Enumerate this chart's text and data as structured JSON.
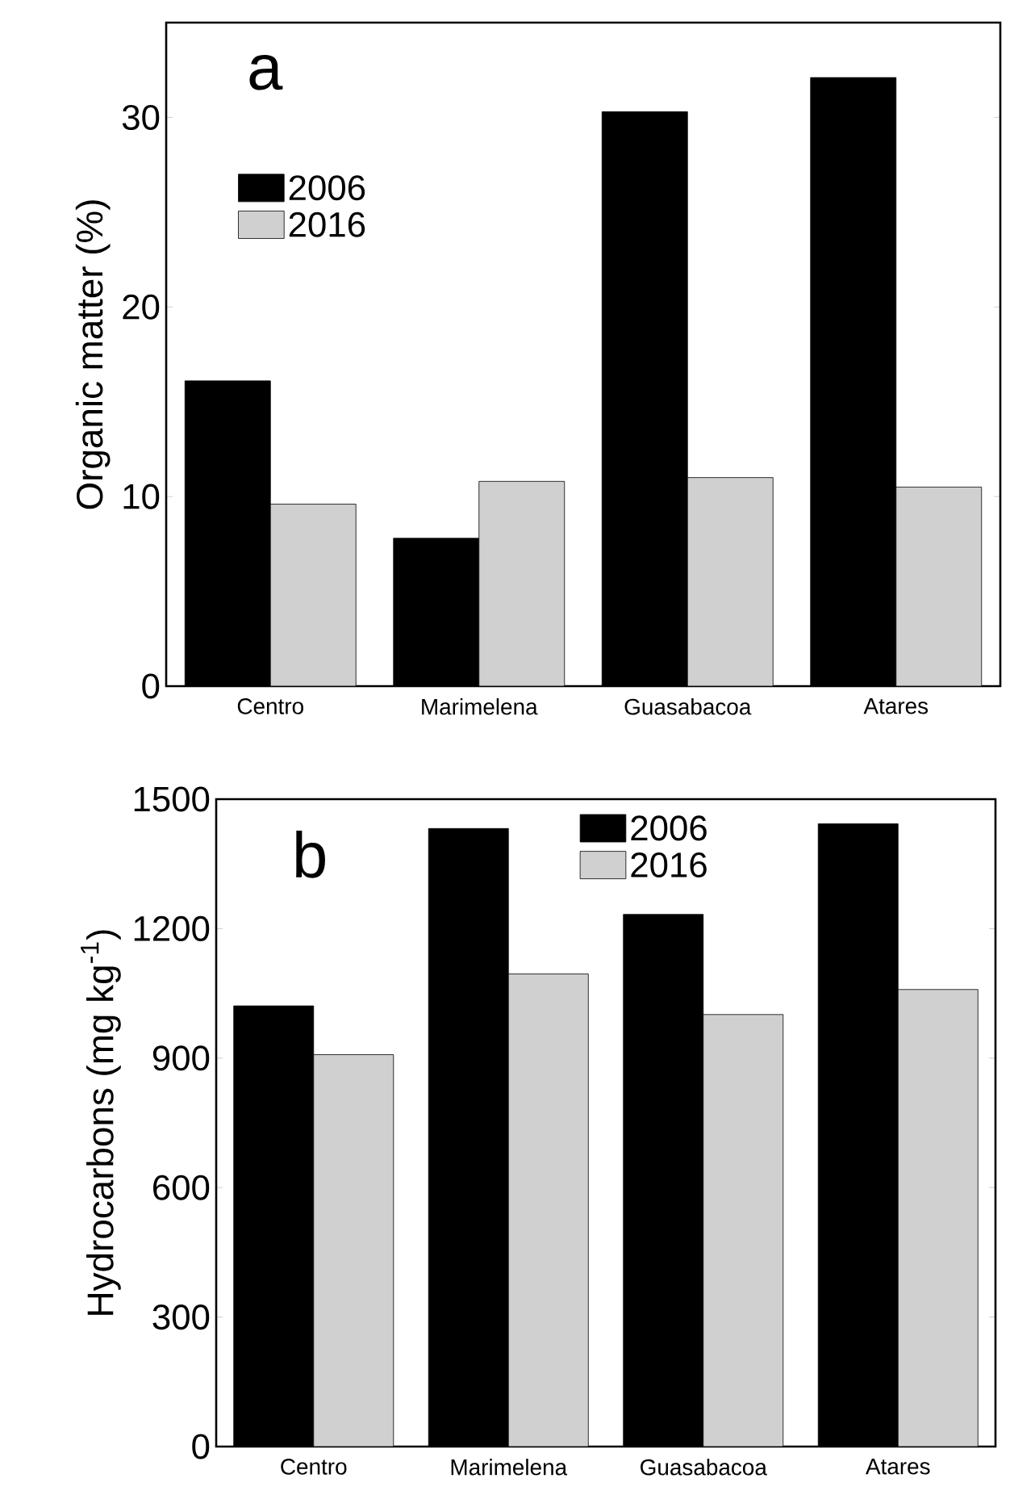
{
  "chart_data": [
    {
      "type": "bar",
      "categories": [
        "Centro",
        "Marimelena",
        "Guasabacoa",
        "Atares"
      ],
      "ylabel": "Organic matter (%)",
      "annotations": [
        "a"
      ],
      "ylim": [
        0,
        35
      ],
      "yticks": [
        0,
        10,
        20,
        30
      ],
      "legend": "top left",
      "series": [
        {
          "name": "2006",
          "color": "#000000",
          "values": [
            16.1,
            7.8,
            30.3,
            32.1
          ]
        },
        {
          "name": "2016",
          "color": "#d0d0d0",
          "values": [
            9.6,
            10.8,
            11.0,
            10.5
          ]
        }
      ]
    },
    {
      "type": "bar",
      "categories": [
        "Centro",
        "Marimelena",
        "Guasabacoa",
        "Atares"
      ],
      "ylabel": "Hydrocarbons (mg kg$^{-1}$)",
      "annotations": [
        "b"
      ],
      "ylim": [
        0,
        1500
      ],
      "yticks": [
        0,
        300,
        600,
        900,
        1200,
        1500
      ],
      "legend": "top",
      "series": [
        {
          "name": "2006",
          "color": "#000000",
          "values": [
            1021,
            1432,
            1233,
            1443
          ]
        },
        {
          "name": "2016",
          "color": "#d0d0d0",
          "values": [
            908,
            1095,
            1001,
            1059
          ]
        }
      ]
    }
  ]
}
